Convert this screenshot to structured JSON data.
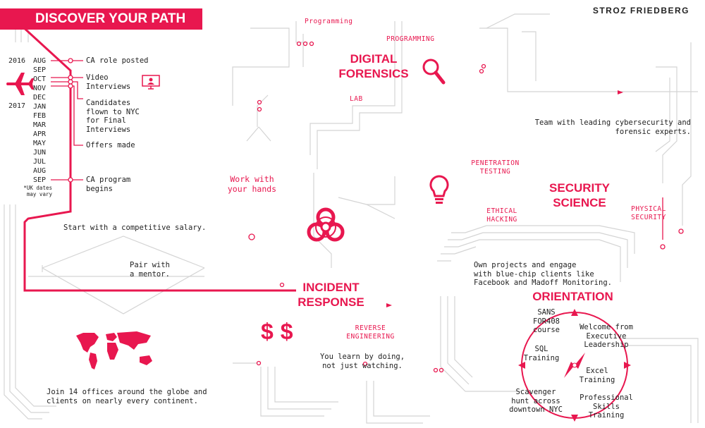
{
  "header": {
    "title": "DISCOVER YOUR PATH",
    "brand": "STROZ FRIEDBERG"
  },
  "timeline": {
    "year1": "2016",
    "year2": "2017",
    "months": [
      "AUG",
      "SEP",
      "OCT",
      "NOV",
      "DEC",
      "JAN",
      "FEB",
      "MAR",
      "APR",
      "MAY",
      "JUN",
      "JUL",
      "AUG",
      "SEP"
    ],
    "note": "*UK dates\nmay vary",
    "events": [
      "CA role posted",
      "Video\nInterviews",
      "Candidates\nflown to NYC\nfor Final\nInterviews",
      "Offers made",
      "CA program\nbegins"
    ]
  },
  "digital_forensics": {
    "title": "DIGITAL\nFORENSICS",
    "tags": [
      "Programming",
      "PROGRAMMING",
      "LAB"
    ]
  },
  "security_science": {
    "title": "SECURITY\nSCIENCE",
    "tags": [
      "PENETRATION\nTESTING",
      "ETHICAL\nHACKING",
      "PHYSICAL\nSECURITY"
    ],
    "team": "Team with leading cybersecurity and\nforensic experts."
  },
  "incident_response": {
    "title": "INCIDENT\nRESPONSE",
    "work": "Work with\nyour hands",
    "reverse": "REVERSE\nENGINEERING",
    "learn": "You learn by doing,\nnot just watching."
  },
  "left_notes": {
    "salary": "Start with a competitive salary.",
    "mentor": "Pair with\na mentor.",
    "offices": "Join 14 offices around the globe and\nclients on nearly every continent."
  },
  "projects": "Own projects and engage\nwith blue-chip clients like\nFacebook and Madoff Monitoring.",
  "orientation": {
    "title": "ORIENTATION",
    "items": [
      "SANS\nFOR408\ncourse",
      "Welcome from\nExecutive\nLeadership",
      "SQL\nTraining",
      "Excel\nTraining",
      "Scavenger\nhunt across\ndowntown NYC",
      "Professional\nSkills\nTraining"
    ]
  },
  "icons": [
    "airplane-icon",
    "monitor-person-icon",
    "magnifier-icon",
    "lightbulb-icon",
    "biohazard-icon",
    "dollar-icon",
    "world-map-icon",
    "compass-icon"
  ],
  "colors": {
    "accent": "#e8174f",
    "circuit": "#d4d4d4"
  }
}
